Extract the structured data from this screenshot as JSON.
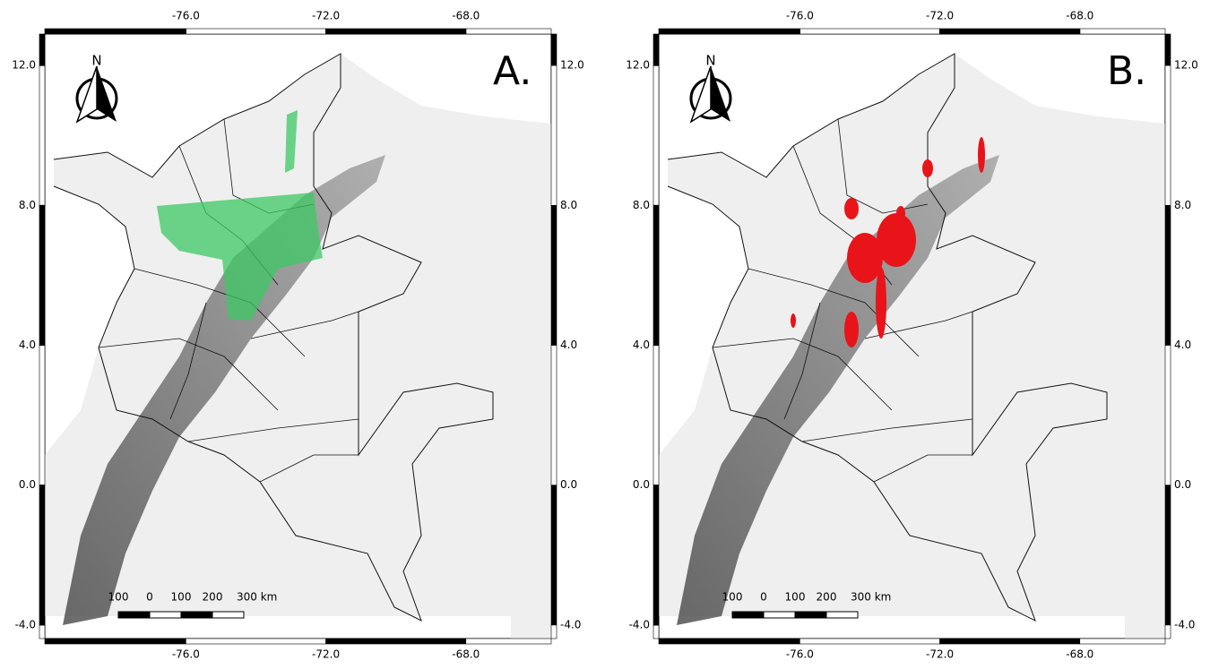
{
  "maps": [
    {
      "label": "A.",
      "north": "N",
      "scale_bar": [
        "100",
        "0",
        "100",
        "200",
        "300 km"
      ],
      "xticks": [
        {
          "value": -76,
          "label": "-76.0"
        },
        {
          "value": -72,
          "label": "-72.0"
        },
        {
          "value": -68,
          "label": "-68.0"
        }
      ],
      "yticks": [
        {
          "value": 12,
          "label": "12.0"
        },
        {
          "value": 8,
          "label": "8.0"
        },
        {
          "value": 4,
          "label": "4.0"
        },
        {
          "value": 0,
          "label": "0.0"
        },
        {
          "value": -4,
          "label": "-4.0"
        }
      ]
    },
    {
      "label": "B.",
      "north": "N",
      "scale_bar": [
        "100",
        "0",
        "100",
        "200",
        "300 km"
      ],
      "xticks": [
        {
          "value": -76,
          "label": "-76.0"
        },
        {
          "value": -72,
          "label": "-72.0"
        },
        {
          "value": -68,
          "label": "-68.0"
        }
      ],
      "yticks": [
        {
          "value": 12,
          "label": "12.0"
        },
        {
          "value": 8,
          "label": "8.0"
        },
        {
          "value": 4,
          "label": "4.0"
        },
        {
          "value": 0,
          "label": "0.0"
        },
        {
          "value": -4,
          "label": "-4.0"
        }
      ]
    }
  ]
}
